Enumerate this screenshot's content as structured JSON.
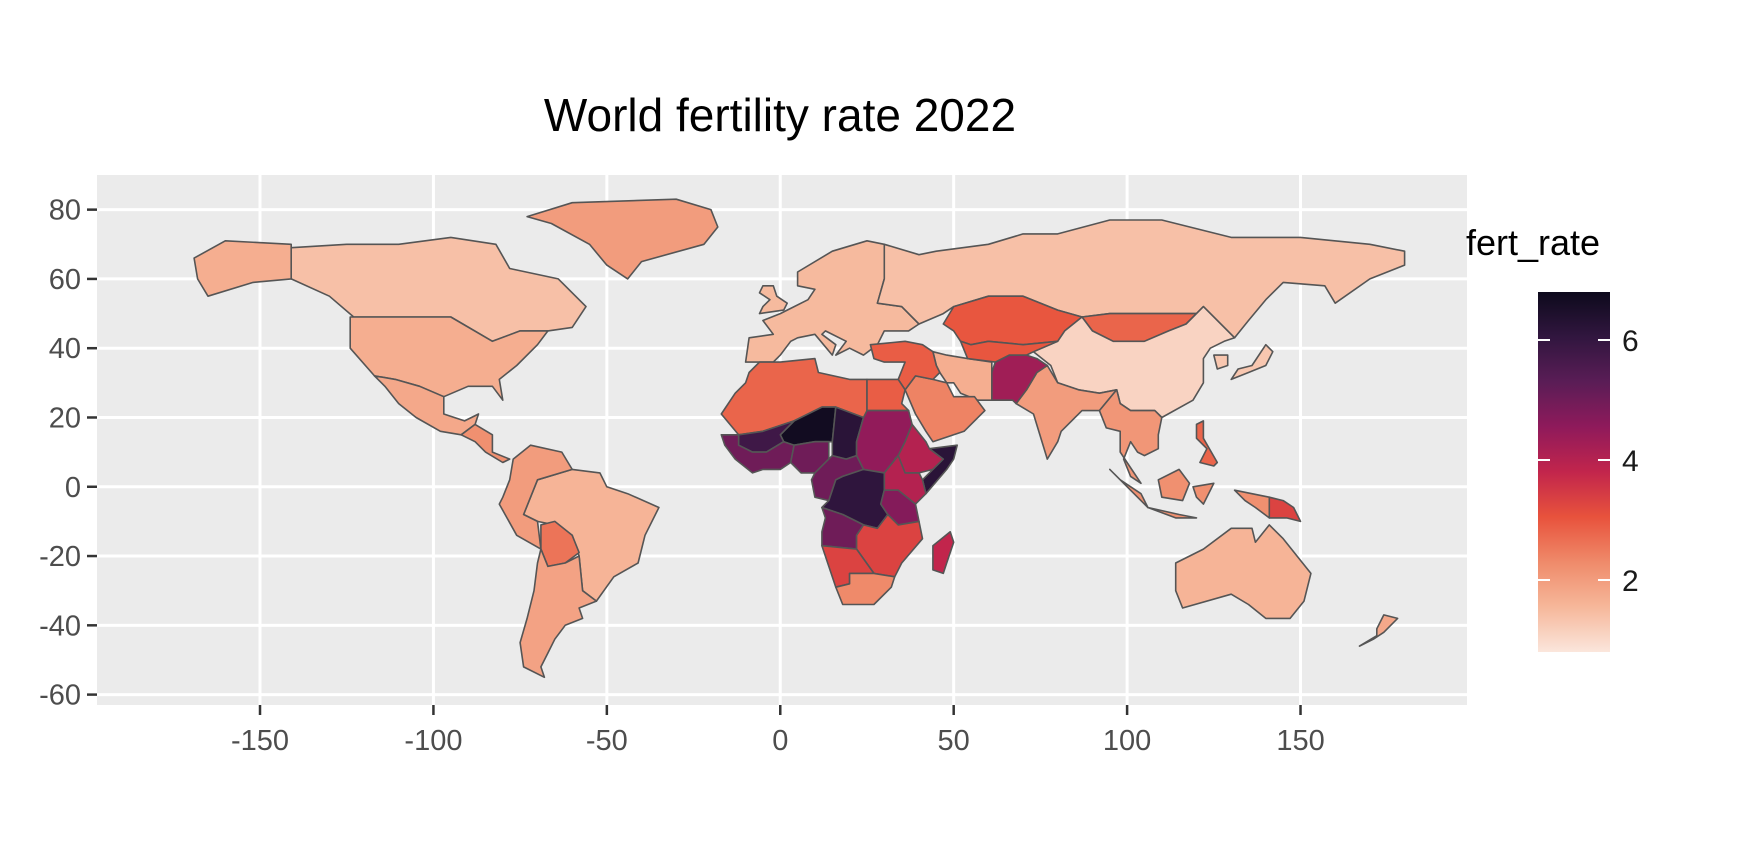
{
  "title": "World fertility rate 2022",
  "legend": {
    "title": "fert_rate",
    "ticks": [
      6,
      4,
      2
    ],
    "range": [
      0.8,
      6.8
    ],
    "colors": [
      "#fbe6dc",
      "#f6b79a",
      "#ef8a6a",
      "#e8523c",
      "#c2254c",
      "#8f1a5b",
      "#5a1d56",
      "#31163f",
      "#0d0a1c"
    ]
  },
  "chart_data": {
    "type": "choropleth",
    "title": "World fertility rate 2022",
    "variable": "fert_rate",
    "x_ticks": [
      -150,
      -100,
      -50,
      0,
      50,
      100,
      150
    ],
    "y_ticks": [
      80,
      60,
      40,
      20,
      0,
      -20,
      -40,
      -60
    ],
    "xlim": [
      -197,
      198
    ],
    "ylim": [
      -63,
      90
    ],
    "background": "#ebebeb",
    "grid": true,
    "legend_position": "right",
    "regions": [
      {
        "name": "Canada",
        "value": 1.4
      },
      {
        "name": "United States",
        "value": 1.7
      },
      {
        "name": "Mexico",
        "value": 1.8
      },
      {
        "name": "Central America",
        "value": 2.2
      },
      {
        "name": "Greenland",
        "value": 2.0
      },
      {
        "name": "Brazil",
        "value": 1.6
      },
      {
        "name": "Andes",
        "value": 2.0
      },
      {
        "name": "Bolivia",
        "value": 2.6
      },
      {
        "name": "Argentina",
        "value": 1.9
      },
      {
        "name": "Europe",
        "value": 1.5
      },
      {
        "name": "Russia",
        "value": 1.4
      },
      {
        "name": "Kazakhstan",
        "value": 3.0
      },
      {
        "name": "Mongolia",
        "value": 2.8
      },
      {
        "name": "China",
        "value": 1.1
      },
      {
        "name": "India",
        "value": 2.0
      },
      {
        "name": "Afghanistan/Pakistan",
        "value": 4.3
      },
      {
        "name": "Iran",
        "value": 1.7
      },
      {
        "name": "Saudi Arabia",
        "value": 2.4
      },
      {
        "name": "North Africa",
        "value": 2.8
      },
      {
        "name": "Egypt",
        "value": 2.9
      },
      {
        "name": "Niger",
        "value": 6.7
      },
      {
        "name": "Mali",
        "value": 5.8
      },
      {
        "name": "Chad",
        "value": 6.2
      },
      {
        "name": "Sudan",
        "value": 4.5
      },
      {
        "name": "West Africa",
        "value": 5.0
      },
      {
        "name": "Nigeria",
        "value": 5.0
      },
      {
        "name": "Ethiopia",
        "value": 4.0
      },
      {
        "name": "Somalia",
        "value": 6.2
      },
      {
        "name": "DR Congo",
        "value": 6.1
      },
      {
        "name": "Angola",
        "value": 5.0
      },
      {
        "name": "Tanzania",
        "value": 4.7
      },
      {
        "name": "Southern Africa",
        "value": 3.3
      },
      {
        "name": "South Africa",
        "value": 2.3
      },
      {
        "name": "Madagascar",
        "value": 3.8
      },
      {
        "name": "Southeast Asia",
        "value": 2.1
      },
      {
        "name": "Indonesia",
        "value": 2.2
      },
      {
        "name": "Philippines",
        "value": 2.8
      },
      {
        "name": "Papua New Guinea",
        "value": 3.3
      },
      {
        "name": "Japan",
        "value": 1.3
      },
      {
        "name": "Australia",
        "value": 1.6
      },
      {
        "name": "New Zealand",
        "value": 1.8
      }
    ]
  }
}
